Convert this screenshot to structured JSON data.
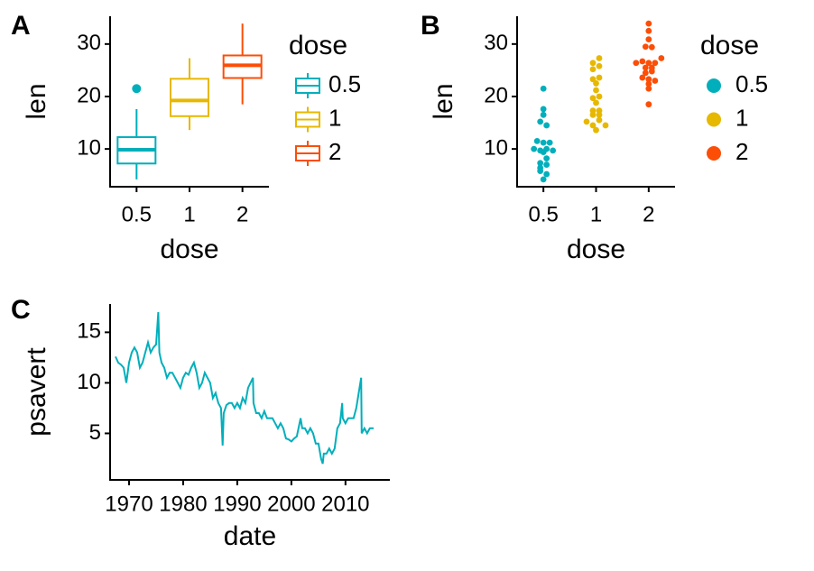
{
  "chart_data": [
    {
      "type": "box",
      "panel_label": "A",
      "x_label": "dose",
      "y_label": "len",
      "legend_title": "dose",
      "categories": [
        "0.5",
        "1",
        "2"
      ],
      "colors": [
        "#00AFBB",
        "#E7B800",
        "#FC4E07"
      ],
      "boxes": [
        {
          "whisker_low": 4.2,
          "q1": 7.225,
          "median": 9.85,
          "q3": 12.25,
          "whisker_high": 17.6,
          "outliers": [
            21.5
          ]
        },
        {
          "whisker_low": 13.6,
          "q1": 16.25,
          "median": 19.25,
          "q3": 23.375,
          "whisker_high": 27.3,
          "outliers": []
        },
        {
          "whisker_low": 18.5,
          "q1": 23.525,
          "median": 25.95,
          "q3": 27.825,
          "whisker_high": 33.9,
          "outliers": []
        }
      ],
      "ylim": [
        2.8,
        35.3
      ],
      "yticks": [
        10,
        20,
        30
      ]
    },
    {
      "type": "dot",
      "panel_label": "B",
      "x_label": "dose",
      "y_label": "len",
      "legend_title": "dose",
      "categories": [
        "0.5",
        "1",
        "2"
      ],
      "colors": [
        "#00AFBB",
        "#E7B800",
        "#FC4E07"
      ],
      "groups": [
        [
          4.2,
          11.5,
          7.3,
          5.8,
          6.4,
          10,
          11.2,
          11.2,
          5.2,
          7,
          15.2,
          21.5,
          17.6,
          9.7,
          14.5,
          10,
          8.2,
          9.4,
          16.5,
          9.7
        ],
        [
          16.5,
          16.5,
          15.2,
          17.3,
          22.5,
          17.3,
          13.6,
          14.5,
          18.8,
          15.5,
          19.7,
          23.3,
          23.6,
          26.4,
          20,
          25.2,
          25.8,
          21.2,
          14.5,
          27.3
        ],
        [
          23.6,
          18.5,
          33.9,
          25.5,
          26.4,
          32.5,
          26.7,
          21.5,
          23.3,
          29.5,
          25.5,
          26.4,
          22.4,
          24.5,
          24.8,
          30.9,
          26.4,
          27.3,
          29.4,
          23
        ]
      ],
      "ylim": [
        2.8,
        35.3
      ],
      "yticks": [
        10,
        20,
        30
      ]
    },
    {
      "type": "line",
      "panel_label": "C",
      "x_label": "date",
      "y_label": "psavert",
      "color": "#00AFBB",
      "x": [
        1967.5,
        1968,
        1968.5,
        1969,
        1969.5,
        1970,
        1970.5,
        1971,
        1971.5,
        1972,
        1972.5,
        1973,
        1973.5,
        1974,
        1974.5,
        1975,
        1975.4,
        1975.6,
        1976,
        1976.5,
        1977,
        1977.5,
        1978,
        1978.5,
        1979,
        1979.5,
        1980,
        1980.5,
        1981,
        1981.5,
        1982,
        1982.5,
        1983,
        1983.5,
        1984,
        1984.5,
        1985,
        1985.5,
        1986,
        1986.5,
        1987,
        1987.3,
        1987.5,
        1988,
        1988.5,
        1989,
        1989.5,
        1990,
        1990.5,
        1991,
        1991.5,
        1992,
        1992.9,
        1993,
        1993.5,
        1994,
        1994.5,
        1995,
        1995.5,
        1996,
        1996.5,
        1997,
        1997.5,
        1998,
        1998.5,
        1999,
        1999.5,
        2000,
        2000.5,
        2001,
        2001.7,
        2002,
        2002.5,
        2003,
        2003.5,
        2004,
        2004.5,
        2005,
        2005.5,
        2005.8,
        2006,
        2006.5,
        2007,
        2007.5,
        2008,
        2008.5,
        2009,
        2009.4,
        2009.5,
        2010,
        2010.5,
        2011,
        2011.5,
        2012,
        2012.9,
        2013,
        2013.5,
        2014,
        2014.5,
        2015.2
      ],
      "values": [
        12.6,
        12,
        11.8,
        11.5,
        10,
        12,
        13,
        13.5,
        13,
        11.5,
        12,
        13,
        14,
        13,
        13.5,
        13.8,
        17,
        13,
        12,
        11.5,
        10.5,
        11,
        11,
        10.5,
        10,
        9.5,
        10.5,
        11,
        10.8,
        11.5,
        12,
        11,
        9.5,
        10,
        11,
        10.5,
        10,
        8.5,
        9,
        8,
        7.5,
        3.8,
        7,
        7.8,
        8,
        8,
        7.5,
        8,
        7.5,
        8.5,
        8,
        9.5,
        10.5,
        8,
        7,
        7,
        6.5,
        7.2,
        6.5,
        6.5,
        6.5,
        6,
        5.5,
        6,
        5.5,
        4.5,
        4.4,
        4.2,
        4.5,
        4.7,
        6.5,
        5.5,
        5.5,
        5,
        5.5,
        5,
        4,
        4,
        2.5,
        2,
        3,
        3,
        3.5,
        3,
        3.5,
        5.5,
        6,
        8,
        6.5,
        6,
        6.5,
        6.5,
        6.5,
        7.5,
        10.5,
        5,
        5.5,
        5,
        5.5,
        5.5
      ],
      "xlim": [
        1966.5,
        2018.2
      ],
      "xticks": [
        1970,
        1980,
        1990,
        2000,
        2010
      ],
      "ylim": [
        0.4,
        17.8
      ],
      "yticks": [
        5,
        10,
        15
      ]
    }
  ]
}
